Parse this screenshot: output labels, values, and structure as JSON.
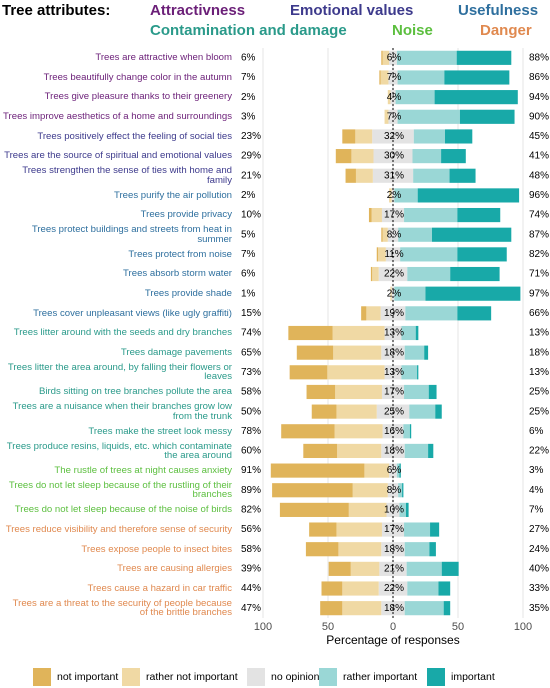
{
  "chart_data": {
    "type": "diverging_bar",
    "title": "Tree attributes:",
    "groups": [
      {
        "name": "Attractivness",
        "color": "#6b1f78",
        "categories": [
          "Trees are attractive when bloom",
          "Trees beautifully change color in the autumn",
          "Trees give pleasure thanks to their greenery",
          "Trees improve aesthetics of a home and surroundings"
        ]
      },
      {
        "name": "Emotional values",
        "color": "#3d3a8c",
        "categories": [
          "Trees positively effect the feeling of social ties",
          "Trees are the source of spiritual and emotional values",
          "Trees strengthen the sense of ties with home and family"
        ]
      },
      {
        "name": "Usefulness",
        "color": "#2e6f9e",
        "categories": [
          "Trees purify the air pollution",
          "Trees provide privacy",
          "Trees protect buildings and streets from heat in summer",
          "Trees protect from noise",
          "Trees absorb storm water",
          "Trees provide shade",
          "Trees cover unpleasant views (like ugly graffiti)"
        ]
      },
      {
        "name": "Contamination and damage",
        "color": "#2a9a8a",
        "categories": [
          "Trees litter around with the seeds and dry branches",
          "Trees damage pavements",
          "Trees litter the area around, by falling their flowers or leaves",
          "Birds sitting on tree branches pollute the area",
          "Trees are a nuisance when their branches grow low from the trunk",
          "Trees make the street look messy",
          "Trees produce resins, liquids, etc. which contaminate the area around"
        ]
      },
      {
        "name": "Noise",
        "color": "#5cbf3f",
        "categories": [
          "The rustle of trees at night causes anxiety",
          "Trees do not let sleep because of the rustling of their branches",
          "Trees do not let sleep because of the noise of birds"
        ]
      },
      {
        "name": "Danger",
        "color": "#e0894f",
        "categories": [
          "Trees reduce visibility and therefore sense of security",
          "Trees expose people to insect bites",
          "Trees are causing allergies",
          "Trees cause a hazard in car traffic",
          "Trees are a threat to the security of people because of the brittle branches"
        ]
      }
    ],
    "series": [
      {
        "name": "not important",
        "color": "#e0b45a",
        "values": [
          1,
          1,
          0,
          0,
          10,
          12,
          8,
          0,
          2,
          1,
          1,
          1,
          0,
          4,
          34,
          28,
          29,
          22,
          19,
          41,
          26,
          72,
          62,
          53,
          21,
          25,
          17,
          16,
          17
        ]
      },
      {
        "name": "rather not important",
        "color": "#f0d9a4",
        "values": [
          5,
          6,
          2,
          3,
          13,
          17,
          13,
          2,
          8,
          4,
          6,
          5,
          1,
          11,
          40,
          37,
          44,
          36,
          31,
          37,
          34,
          19,
          27,
          29,
          35,
          33,
          22,
          28,
          30
        ]
      },
      {
        "name": "no opinion",
        "color": "#e3e3e3",
        "values": [
          6,
          7,
          4,
          7,
          32,
          30,
          31,
          2,
          17,
          8,
          11,
          22,
          2,
          19,
          13,
          18,
          13,
          17,
          25,
          16,
          18,
          6,
          8,
          10,
          17,
          18,
          21,
          22,
          18
        ],
        "value_labels": [
          "6%",
          "7%",
          "4%",
          "7%",
          "32%",
          "30%",
          "31%",
          "2%",
          "17%",
          "8%",
          "11%",
          "22%",
          "2%",
          "19%",
          "13%",
          "18%",
          "13%",
          "17%",
          "25%",
          "16%",
          "18%",
          "6%",
          "8%",
          "10%",
          "17%",
          "18%",
          "21%",
          "22%",
          "18%"
        ]
      },
      {
        "name": "rather important",
        "color": "#9ad7d6",
        "values": [
          46,
          36,
          30,
          48,
          24,
          22,
          28,
          18,
          41,
          26,
          44,
          33,
          24,
          40,
          11,
          15,
          12,
          19,
          20,
          5,
          18,
          2,
          3,
          5,
          20,
          19,
          27,
          24,
          30
        ]
      },
      {
        "name": "important",
        "color": "#18a9a8",
        "values": [
          42,
          50,
          64,
          42,
          21,
          19,
          20,
          78,
          33,
          61,
          38,
          38,
          73,
          26,
          2,
          3,
          1,
          6,
          5,
          1,
          4,
          1,
          1,
          2,
          7,
          5,
          13,
          9,
          5
        ]
      }
    ],
    "left_totals": {
      "values": [
        6,
        7,
        2,
        3,
        23,
        29,
        21,
        2,
        10,
        5,
        7,
        6,
        1,
        15,
        74,
        65,
        73,
        58,
        50,
        78,
        60,
        91,
        89,
        82,
        56,
        58,
        39,
        44,
        47
      ],
      "value_labels": [
        "6%",
        "7%",
        "2%",
        "3%",
        "23%",
        "29%",
        "21%",
        "2%",
        "10%",
        "5%",
        "7%",
        "6%",
        "1%",
        "15%",
        "74%",
        "65%",
        "73%",
        "58%",
        "50%",
        "78%",
        "60%",
        "91%",
        "89%",
        "82%",
        "56%",
        "58%",
        "39%",
        "44%",
        "47%"
      ]
    },
    "right_totals": {
      "values": [
        88,
        86,
        94,
        90,
        45,
        41,
        48,
        96,
        74,
        87,
        82,
        71,
        97,
        66,
        13,
        18,
        13,
        25,
        25,
        6,
        22,
        3,
        4,
        7,
        27,
        24,
        40,
        33,
        35
      ],
      "value_labels": [
        "88%",
        "86%",
        "94%",
        "90%",
        "45%",
        "41%",
        "48%",
        "96%",
        "74%",
        "87%",
        "82%",
        "71%",
        "97%",
        "66%",
        "13%",
        "18%",
        "13%",
        "25%",
        "25%",
        "6%",
        "22%",
        "3%",
        "4%",
        "7%",
        "27%",
        "24%",
        "40%",
        "33%",
        "35%"
      ]
    },
    "xlabel": "Percentage of responses",
    "xlim": [
      -105,
      105
    ],
    "xticks": [
      {
        "value": -100,
        "label": "100"
      },
      {
        "value": -50,
        "label": "50"
      },
      0,
      50,
      100
    ],
    "grid": true
  }
}
